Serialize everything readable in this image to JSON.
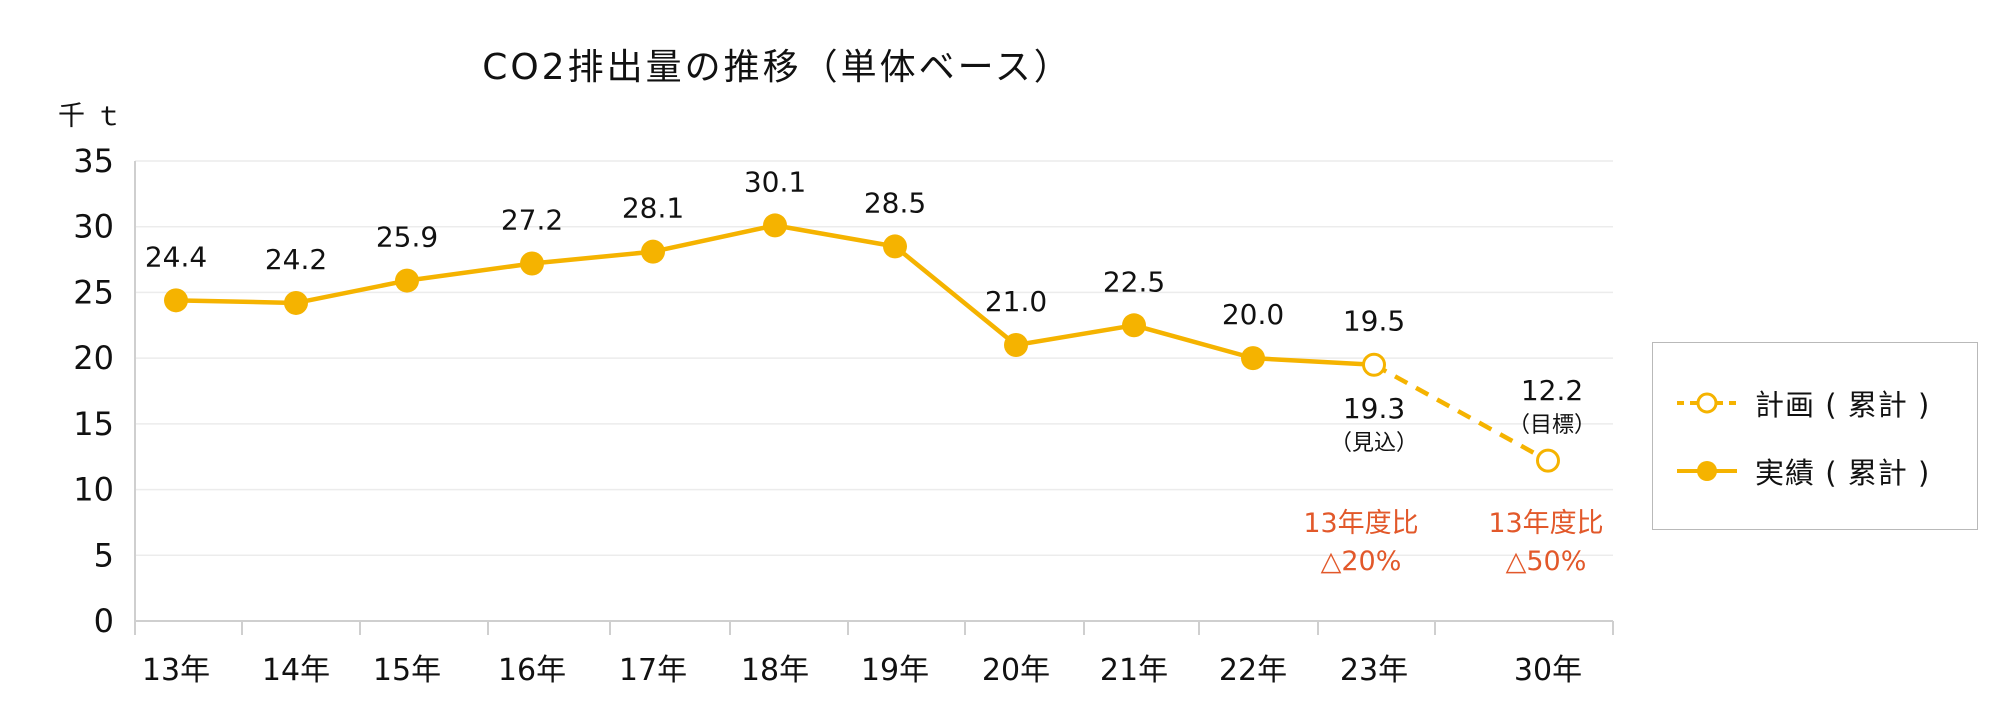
{
  "chart_data": {
    "type": "line",
    "title": "CO2排出量の推移（単体ベース）",
    "ylabel": "千ｔ",
    "ylim": [
      0,
      35
    ],
    "yticks": [
      "0",
      "5",
      "10",
      "15",
      "20",
      "25",
      "30",
      "35"
    ],
    "categories": [
      "13年",
      "14年",
      "15年",
      "16年",
      "17年",
      "18年",
      "19年",
      "20年",
      "21年",
      "22年",
      "23年",
      "30年"
    ],
    "grid": true,
    "legend_position": "right",
    "series": [
      {
        "name": "実績（累計）",
        "style": "solid line, filled markers",
        "x": [
          "13年",
          "14年",
          "15年",
          "16年",
          "17年",
          "18年",
          "19年",
          "20年",
          "21年",
          "22年"
        ],
        "values": [
          24.4,
          24.2,
          25.9,
          27.2,
          28.1,
          30.1,
          28.5,
          21.0,
          22.5,
          20.0
        ],
        "labels": [
          "24.4",
          "24.2",
          "25.9",
          "27.2",
          "28.1",
          "30.1",
          "28.5",
          "21.0",
          "22.5",
          "20.0"
        ]
      },
      {
        "name": "計画（累計）",
        "style": "dashed line, open markers",
        "x": [
          "23年",
          "30年"
        ],
        "values": [
          19.5,
          12.2
        ],
        "labels": [
          "19.5",
          "12.2"
        ]
      }
    ],
    "annotations": {
      "y23_sub_value": "19.3",
      "y23_sub_note": "（見込）",
      "y30_note": "（目標）",
      "reduction_23_line1": "13年度比",
      "reduction_23_line2": "△20%",
      "reduction_30_line1": "13年度比",
      "reduction_30_line2": "△50%"
    },
    "legend": [
      {
        "label": "計画 ( 累計 )",
        "style": "dashed-open"
      },
      {
        "label": "実績 ( 累計 )",
        "style": "solid-filled"
      }
    ]
  },
  "colors": {
    "series": "#F5B300",
    "annotation": "#E2582A",
    "axis": "#cfcfcf",
    "grid": "#ececec"
  }
}
